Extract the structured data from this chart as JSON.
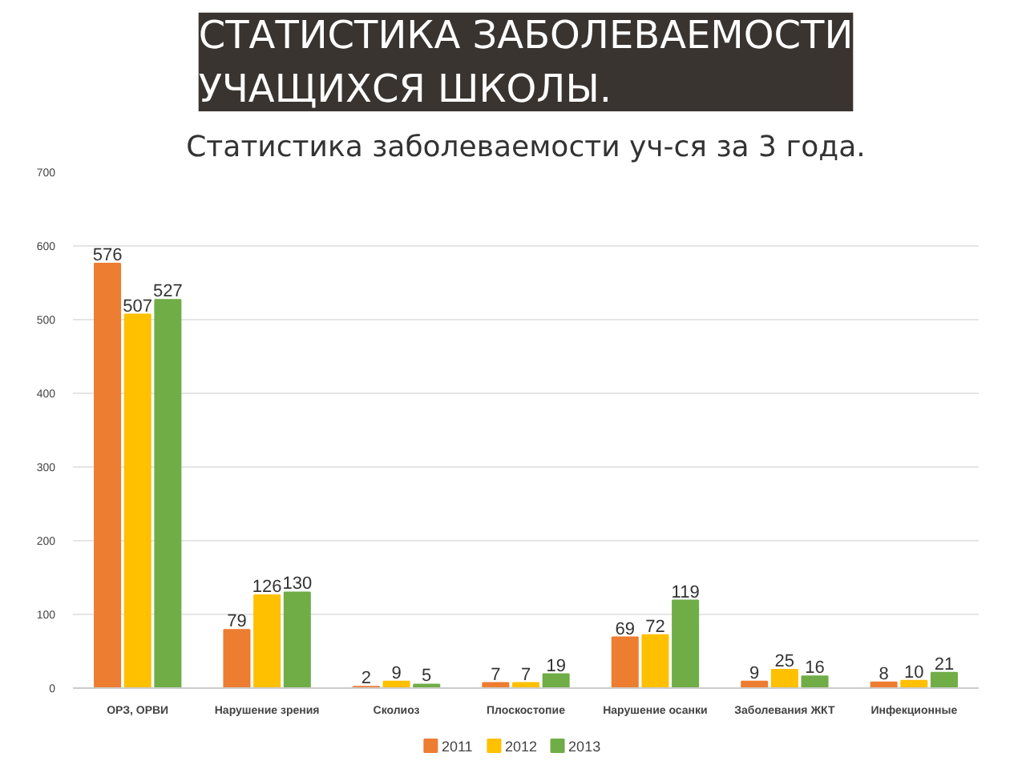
{
  "chart_data": {
    "type": "bar",
    "title": "СТАТИСТИКА ЗАБОЛЕВАЕМОСТИ УЧАЩИХСЯ ШКОЛЫ.",
    "subtitle": "Статистика заболеваемости уч-ся за 3 года.",
    "categories": [
      "ОРЗ, ОРВИ",
      "Нарушение зрения",
      "Сколиоз",
      "Плоскостопие",
      "Нарушение осанки",
      "Заболевания ЖКТ",
      "Инфекционные"
    ],
    "series": [
      {
        "name": "2011",
        "color": "#ed7d31",
        "values": [
          576,
          79,
          2,
          7,
          69,
          9,
          8
        ]
      },
      {
        "name": "2012",
        "color": "#ffc000",
        "values": [
          507,
          126,
          9,
          7,
          72,
          25,
          10
        ]
      },
      {
        "name": "2013",
        "color": "#70ad47",
        "values": [
          527,
          130,
          5,
          19,
          119,
          16,
          21
        ]
      }
    ],
    "ylim": [
      0,
      700
    ],
    "yticks": [
      0,
      100,
      200,
      300,
      400,
      500,
      600,
      700
    ],
    "grid": "y",
    "legend": "bottom",
    "data_labels": true
  }
}
